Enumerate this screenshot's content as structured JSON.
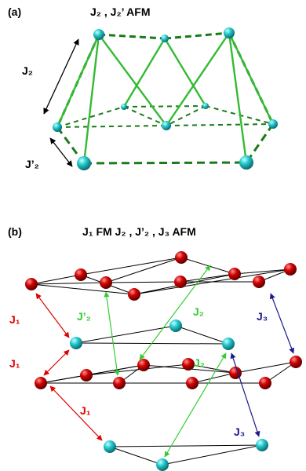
{
  "panel_a": {
    "label": "(a)",
    "title": "J₂ , J₂’    AFM",
    "label_j2": "J₂",
    "label_j2p": "J’₂"
  },
  "panel_b": {
    "label": "(b)",
    "title": "J₁ FM    J₂ , J’₂ , J₃ AFM",
    "label_j1_top": "J₁",
    "label_j1_mid": "J₁",
    "label_j1_bot": "J₁",
    "label_j2p": "J’₂",
    "label_j2_top": "J₂",
    "label_j2_bot": "J₂",
    "label_j3_top": "J₃",
    "label_j3_bot": "J₃"
  },
  "colors": {
    "cyan_atom": "#1fc7c7",
    "red_atom": "#d40000",
    "green_bond": "#33bb33",
    "dark_green_bond": "#1a7a1a",
    "j1_arrow": "#e00000",
    "j2_arrow": "#33cc33",
    "j3_arrow": "#1a1a90"
  }
}
